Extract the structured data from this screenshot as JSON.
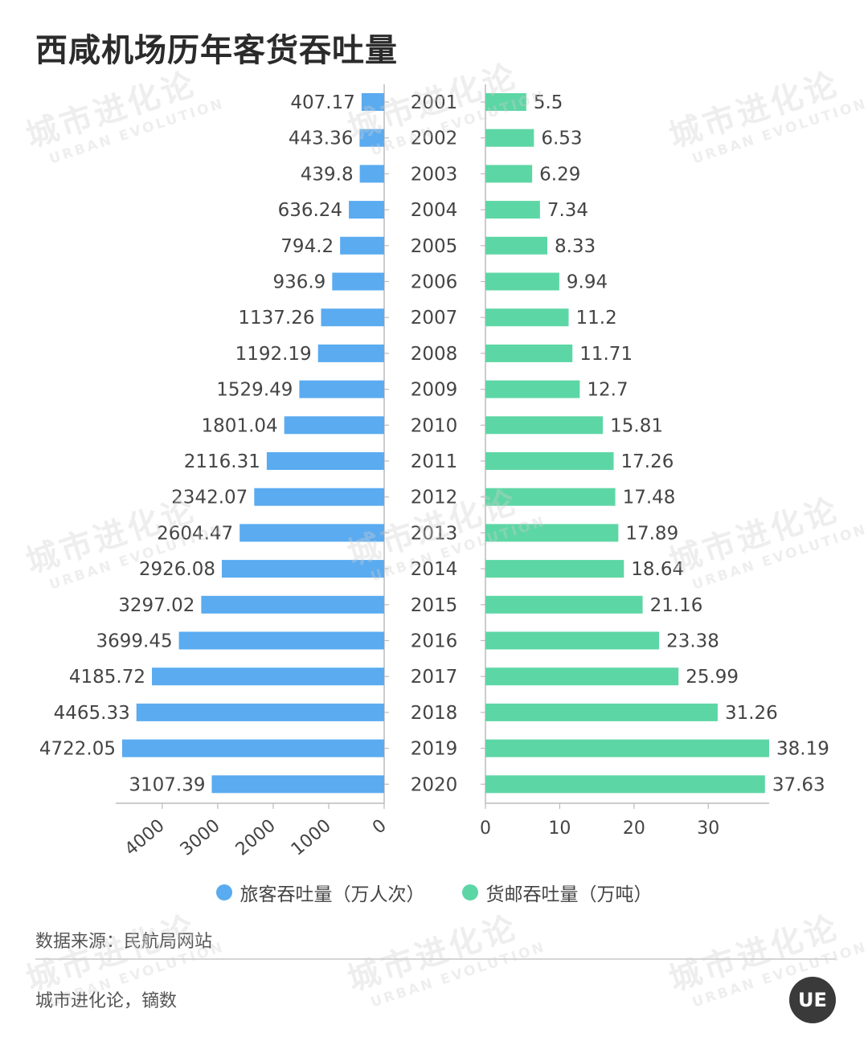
{
  "title": "西咸机场历年客货吞吐量",
  "legend": {
    "passenger": "旅客吞吐量（万人次）",
    "cargo": "货邮吞吐量（万吨）"
  },
  "source": "数据来源：民航局网站",
  "credit": "城市进化论，镝数",
  "logo_text": "UE",
  "watermark": {
    "cn": "城市进化论",
    "en": "URBAN EVOLUTION"
  },
  "colors": {
    "passenger": "#5aabf0",
    "cargo": "#5dd6a5",
    "axis": "#bbbbbb"
  },
  "chart_data": {
    "type": "bar",
    "orientation": "horizontal",
    "layout": "butterfly",
    "categories": [
      "2001",
      "2002",
      "2003",
      "2004",
      "2005",
      "2006",
      "2007",
      "2008",
      "2009",
      "2010",
      "2011",
      "2012",
      "2013",
      "2014",
      "2015",
      "2016",
      "2017",
      "2018",
      "2019",
      "2020"
    ],
    "series": [
      {
        "name": "旅客吞吐量（万人次）",
        "side": "left",
        "values": [
          407.17,
          443.36,
          439.8,
          636.24,
          794.2,
          936.9,
          1137.26,
          1192.19,
          1529.49,
          1801.04,
          2116.31,
          2342.07,
          2604.47,
          2926.08,
          3297.02,
          3699.45,
          4185.72,
          4465.33,
          4722.05,
          3107.39
        ],
        "labels": [
          "407.17",
          "443.36",
          "439.8",
          "636.24",
          "794.2",
          "936.9",
          "1137.26",
          "1192.19",
          "1529.49",
          "1801.04",
          "2116.31",
          "2342.07",
          "2604.47",
          "2926.08",
          "3297.02",
          "3699.45",
          "4185.72",
          "4465.33",
          "4722.05",
          "3107.39"
        ],
        "xlim": [
          0,
          4722.05
        ],
        "ticks": [
          0,
          1000,
          2000,
          3000,
          4000
        ],
        "tick_labels": [
          "0",
          "1000",
          "2000",
          "3000",
          "4000"
        ]
      },
      {
        "name": "货邮吞吐量（万吨）",
        "side": "right",
        "values": [
          5.5,
          6.53,
          6.29,
          7.34,
          8.33,
          9.94,
          11.2,
          11.71,
          12.7,
          15.81,
          17.26,
          17.48,
          17.89,
          18.64,
          21.16,
          23.38,
          25.99,
          31.26,
          38.19,
          37.63
        ],
        "labels": [
          "5.5",
          "6.53",
          "6.29",
          "7.34",
          "8.33",
          "9.94",
          "11.2",
          "11.71",
          "12.7",
          "15.81",
          "17.26",
          "17.48",
          "17.89",
          "18.64",
          "21.16",
          "23.38",
          "25.99",
          "31.26",
          "38.19",
          "37.63"
        ],
        "xlim": [
          0,
          38.19
        ],
        "ticks": [
          0,
          10,
          20,
          30
        ],
        "tick_labels": [
          "0",
          "10",
          "20",
          "30"
        ]
      }
    ],
    "grid": false,
    "legend_position": "bottom"
  }
}
